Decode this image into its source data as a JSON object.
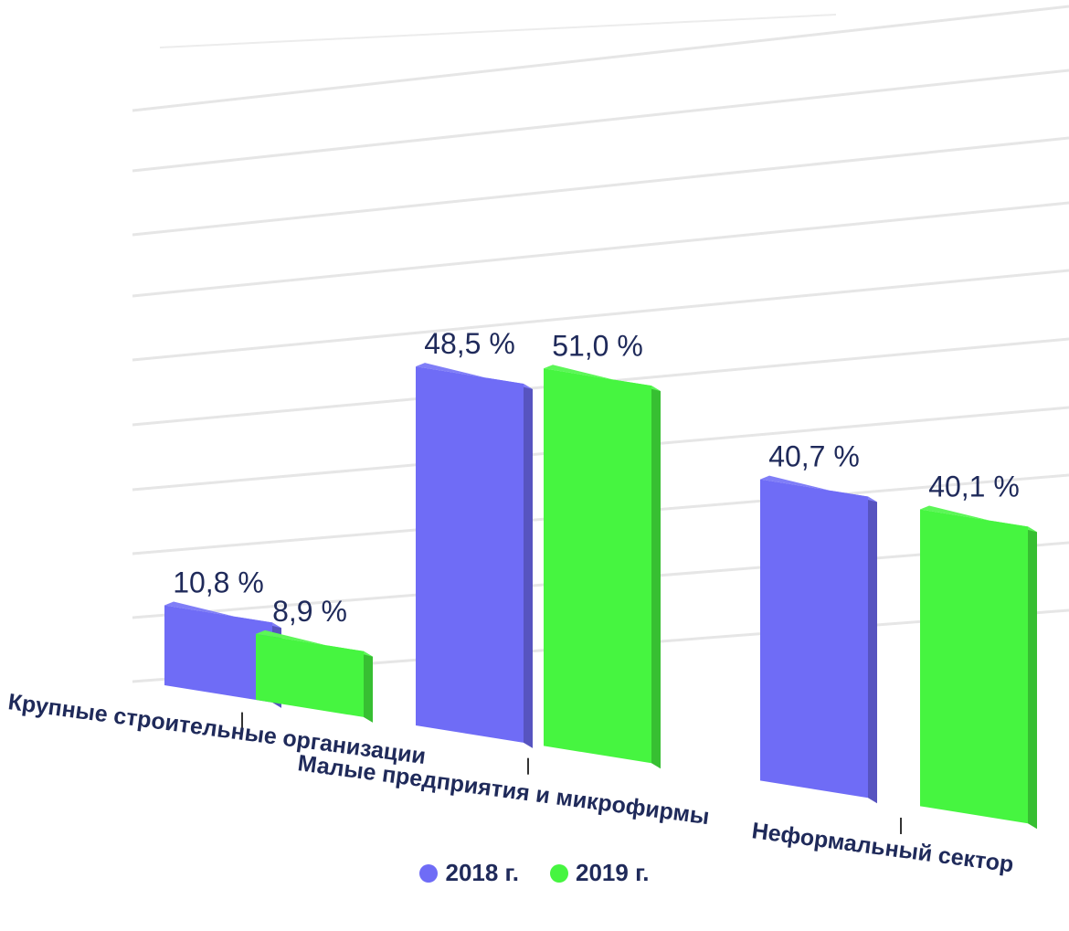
{
  "chart_data": {
    "type": "bar",
    "categories": [
      "Крупные строительные организации",
      "Малые предприятия и микрофирмы",
      "Неформальный сектор"
    ],
    "series": [
      {
        "name": "2018 г.",
        "values": [
          10.8,
          48.5,
          40.7
        ],
        "labels": [
          "10,8 %",
          "48,5 %",
          "40,7 %"
        ],
        "color": "#6f6cf6"
      },
      {
        "name": "2019 г.",
        "values": [
          8.9,
          51.0,
          40.1
        ],
        "labels": [
          "8,9 %",
          "51,0 %",
          "40,1 %"
        ],
        "color": "#46f540"
      }
    ],
    "grid": true,
    "legend_position": "bottom-center",
    "style": "3d-perspective"
  }
}
